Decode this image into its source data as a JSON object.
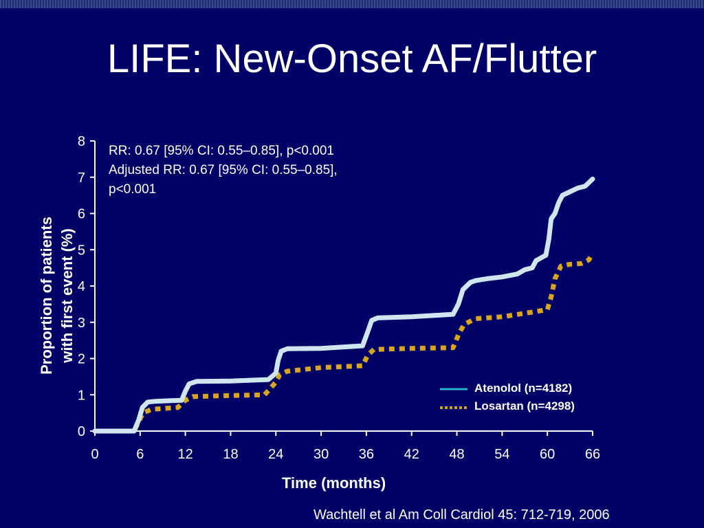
{
  "slide": {
    "title": "LIFE: New-Onset AF/Flutter",
    "citation": "Wachtell  et al Am Coll Cardiol 45: 712-719, 2006"
  },
  "chart_data": {
    "type": "line",
    "xlabel": "Time (months)",
    "ylabel_line1": "Proportion of patients",
    "ylabel_line2": "with first event (%)",
    "xlim": [
      0,
      66
    ],
    "ylim": [
      0,
      8
    ],
    "xticks": [
      0,
      6,
      12,
      18,
      24,
      30,
      36,
      42,
      48,
      54,
      60,
      66
    ],
    "yticks": [
      0,
      1,
      2,
      3,
      4,
      5,
      6,
      7,
      8
    ],
    "annotations": [
      "RR: 0.67 [95% CI:  0.55–0.85], p<0.001",
      "Adjusted RR: 0.67 [95% CI: 0.55–0.85],",
      "p<0.001"
    ],
    "legend_position": "bottom-right",
    "series": [
      {
        "name": "Atenolol (n=4182)",
        "color": "#cfe6ef",
        "style": "solid",
        "x": [
          0,
          5.2,
          5.8,
          6.3,
          7,
          8,
          11.5,
          12,
          12.5,
          13.5,
          18,
          23,
          24,
          24.3,
          24.7,
          25.5,
          30,
          35.5,
          36.2,
          36.7,
          37.5,
          42,
          47.5,
          48.2,
          48.8,
          49.8,
          50.5,
          52,
          54,
          56,
          57,
          58,
          58.5,
          59.8,
          60.2,
          60.5,
          61,
          61.5,
          62,
          63,
          64,
          65,
          66
        ],
        "y": [
          0,
          0,
          0.3,
          0.65,
          0.8,
          0.82,
          0.85,
          1.1,
          1.3,
          1.37,
          1.38,
          1.42,
          1.6,
          1.95,
          2.2,
          2.27,
          2.28,
          2.35,
          2.75,
          3.05,
          3.12,
          3.15,
          3.22,
          3.5,
          3.9,
          4.1,
          4.15,
          4.2,
          4.25,
          4.33,
          4.45,
          4.5,
          4.7,
          4.85,
          5.3,
          5.85,
          6.0,
          6.3,
          6.5,
          6.6,
          6.7,
          6.75,
          6.95
        ]
      },
      {
        "name": "Losartan (n=4298)",
        "color": "#d9a521",
        "style": "dashed",
        "x": [
          0,
          5.2,
          5.8,
          6.4,
          7.5,
          11,
          12,
          13,
          18,
          22.5,
          24,
          24.5,
          25.5,
          30,
          35.5,
          36.2,
          37,
          42,
          47.5,
          48.3,
          49,
          50.5,
          54,
          58,
          60,
          60.5,
          61,
          61.8,
          63,
          64.5,
          65.5,
          66
        ],
        "y": [
          0,
          0,
          0.25,
          0.5,
          0.6,
          0.65,
          0.85,
          0.95,
          0.98,
          1.0,
          1.35,
          1.55,
          1.65,
          1.75,
          1.8,
          2.1,
          2.25,
          2.28,
          2.3,
          2.7,
          2.95,
          3.1,
          3.15,
          3.28,
          3.35,
          3.7,
          4.2,
          4.55,
          4.6,
          4.62,
          4.72,
          4.9
        ]
      }
    ]
  }
}
